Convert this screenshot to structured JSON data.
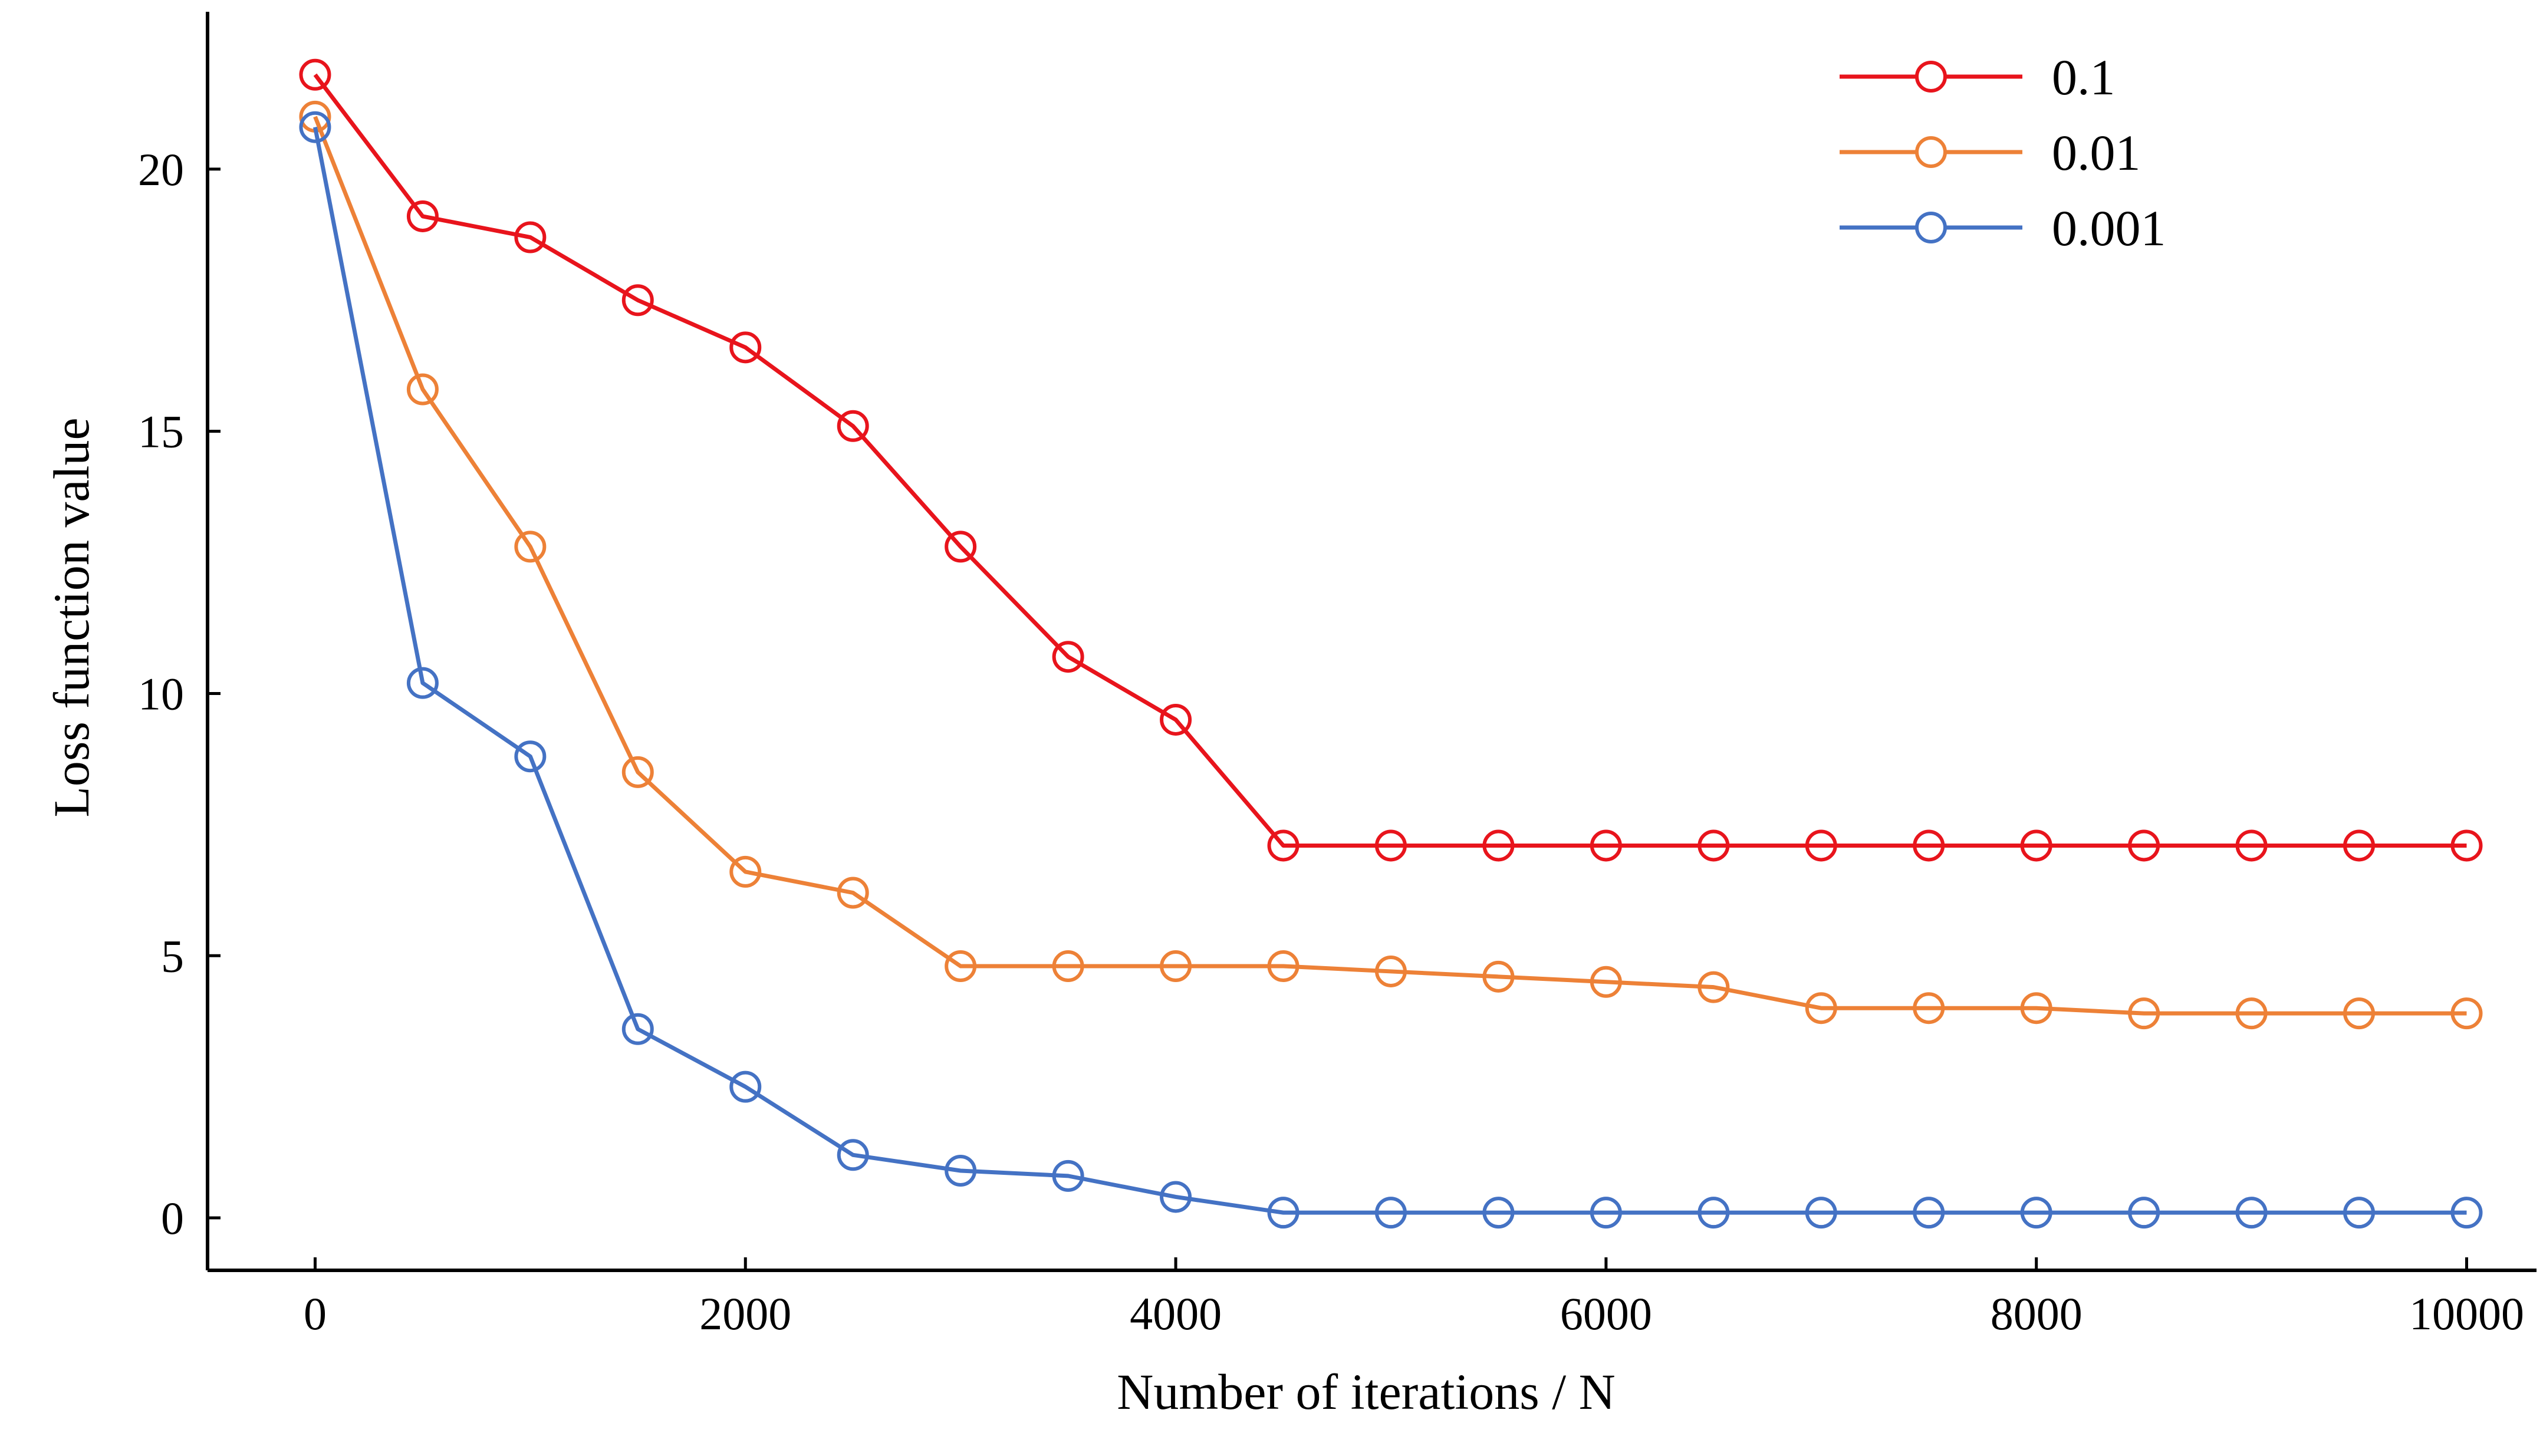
{
  "chart_data": {
    "type": "line",
    "title": "",
    "xlabel": "Number of iterations / N",
    "ylabel": "Loss function value",
    "xlim": [
      -500,
      10000
    ],
    "ylim": [
      -1,
      23
    ],
    "xticks": [
      0,
      2000,
      4000,
      6000,
      8000,
      10000
    ],
    "yticks": [
      0,
      5,
      10,
      15,
      20
    ],
    "xtick_labels": [
      "0",
      "2000",
      "4000",
      "6000",
      "8000",
      "10000"
    ],
    "ytick_labels": [
      "0",
      "5",
      "10",
      "15",
      "20"
    ],
    "grid": false,
    "legend_position": "top-right",
    "marker": "open-circle",
    "x": [
      0,
      500,
      1000,
      1500,
      2000,
      2500,
      3000,
      3500,
      4000,
      4500,
      5000,
      5500,
      6000,
      6500,
      7000,
      7500,
      8000,
      8500,
      9000,
      9500,
      10000
    ],
    "series": [
      {
        "name": "0.1",
        "color": "#e8141c",
        "values": [
          21.8,
          19.1,
          18.7,
          17.5,
          16.6,
          15.1,
          12.8,
          10.7,
          9.5,
          7.1,
          7.1,
          7.1,
          7.1,
          7.1,
          7.1,
          7.1,
          7.1,
          7.1,
          7.1,
          7.1,
          7.1
        ]
      },
      {
        "name": "0.01",
        "color": "#ed8137",
        "values": [
          21.0,
          15.8,
          12.8,
          8.5,
          6.6,
          6.2,
          4.8,
          4.8,
          4.8,
          4.8,
          4.7,
          4.6,
          4.5,
          4.4,
          4.0,
          4.0,
          4.0,
          3.9,
          3.9,
          3.9,
          3.9
        ]
      },
      {
        "name": "0.001",
        "color": "#4472c4",
        "values": [
          20.8,
          10.2,
          8.8,
          3.6,
          2.5,
          1.2,
          0.9,
          0.8,
          0.4,
          0.1,
          0.1,
          0.1,
          0.1,
          0.1,
          0.1,
          0.1,
          0.1,
          0.1,
          0.1,
          0.1,
          0.1
        ]
      }
    ]
  }
}
